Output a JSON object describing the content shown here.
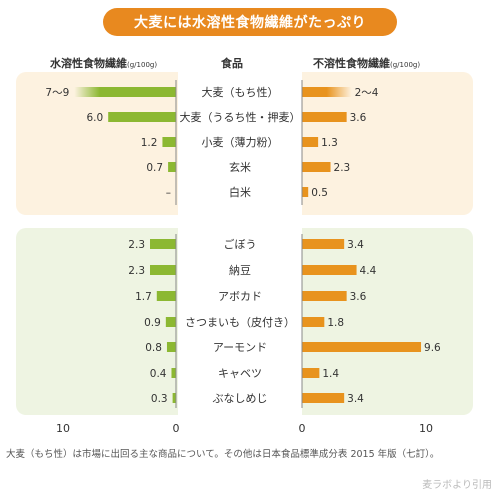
{
  "title": "大麦には水溶性食物繊維がたっぷり",
  "headers": {
    "left": "水溶性食物繊維",
    "left_unit": "(g/100g)",
    "center": "食品",
    "right": "不溶性食物繊維",
    "right_unit": "(g/100g)"
  },
  "footnote": "大麦（もち性）は市場に出回る主な商品について。その他は日本食品標準成分表 2015 年版（七訂）。",
  "credit": "麦ラボより引用",
  "colors": {
    "banner": "#e8891f",
    "soluble_bar": "#8cb832",
    "insoluble_bar": "#e8931e",
    "top_panel": "#fdf2e0",
    "bottom_panel": "#eef4e2"
  },
  "chart_data": {
    "type": "bar",
    "layout": "butterfly",
    "xlim": [
      0,
      10
    ],
    "axis_ticks": [
      "10",
      "0",
      "0",
      "10"
    ],
    "series": [
      {
        "name": "水溶性食物繊維",
        "unit": "g/100g",
        "direction": "left"
      },
      {
        "name": "不溶性食物繊維",
        "unit": "g/100g",
        "direction": "right"
      }
    ],
    "groups": [
      {
        "panel": "grains",
        "items": [
          {
            "food": "大麦（もち性）",
            "soluble": 9,
            "soluble_label": "7〜9",
            "insoluble": 4,
            "insoluble_label": "2〜4",
            "range": true
          },
          {
            "food": "大麦（うるち性・押麦）",
            "soluble": 6.0,
            "soluble_label": "6.0",
            "insoluble": 3.6,
            "insoluble_label": "3.6"
          },
          {
            "food": "小麦（薄力粉）",
            "soluble": 1.2,
            "soluble_label": "1.2",
            "insoluble": 1.3,
            "insoluble_label": "1.3"
          },
          {
            "food": "玄米",
            "soluble": 0.7,
            "soluble_label": "0.7",
            "insoluble": 2.3,
            "insoluble_label": "2.3"
          },
          {
            "food": "白米",
            "soluble": 0,
            "soluble_label": "–",
            "insoluble": 0.5,
            "insoluble_label": "0.5"
          }
        ]
      },
      {
        "panel": "vegetables",
        "items": [
          {
            "food": "ごぼう",
            "soluble": 2.3,
            "soluble_label": "2.3",
            "insoluble": 3.4,
            "insoluble_label": "3.4"
          },
          {
            "food": "納豆",
            "soluble": 2.3,
            "soluble_label": "2.3",
            "insoluble": 4.4,
            "insoluble_label": "4.4"
          },
          {
            "food": "アボカド",
            "soluble": 1.7,
            "soluble_label": "1.7",
            "insoluble": 3.6,
            "insoluble_label": "3.6"
          },
          {
            "food": "さつまいも（皮付き）",
            "soluble": 0.9,
            "soluble_label": "0.9",
            "insoluble": 1.8,
            "insoluble_label": "1.8"
          },
          {
            "food": "アーモンド",
            "soluble": 0.8,
            "soluble_label": "0.8",
            "insoluble": 9.6,
            "insoluble_label": "9.6"
          },
          {
            "food": "キャベツ",
            "soluble": 0.4,
            "soluble_label": "0.4",
            "insoluble": 1.4,
            "insoluble_label": "1.4"
          },
          {
            "food": "ぶなしめじ",
            "soluble": 0.3,
            "soluble_label": "0.3",
            "insoluble": 3.4,
            "insoluble_label": "3.4"
          }
        ]
      }
    ]
  }
}
